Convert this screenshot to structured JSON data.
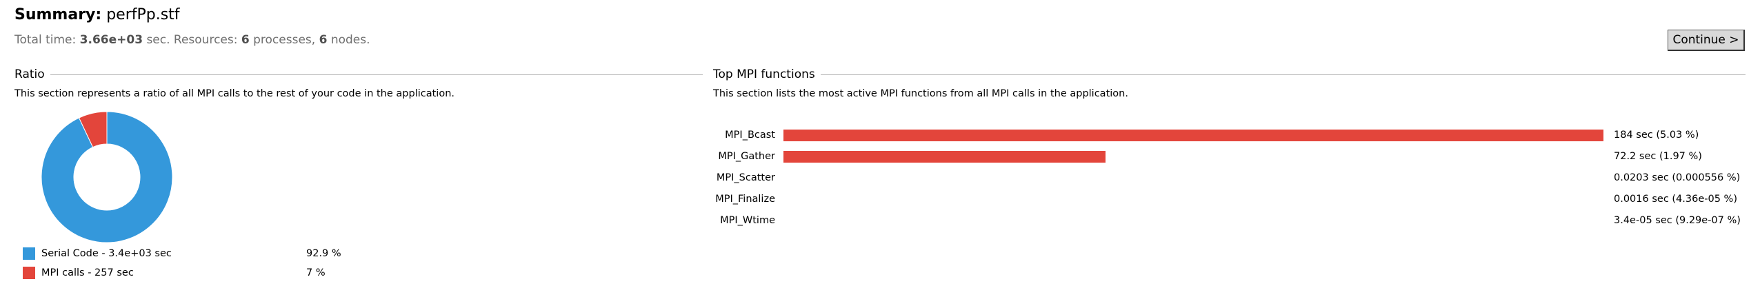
{
  "summary": {
    "title_label": "Summary:",
    "file_name": "perfPp.stf",
    "total_time_prefix": "Total time:",
    "total_time_value": "3.66e+03",
    "total_time_unit": "sec.",
    "resources_prefix": "Resources:",
    "processes_count": "6",
    "processes_label": "processes,",
    "nodes_count": "6",
    "nodes_label": "nodes."
  },
  "continue_button": {
    "label": "Continue >"
  },
  "ratio": {
    "heading": "Ratio",
    "description": "This section represents a ratio of all MPI calls to the rest of your code in the application.",
    "legend": [
      {
        "label": "Serial Code - 3.4e+03 sec",
        "percent_text": "92.9 %",
        "fraction": 0.929,
        "color": "#3498db"
      },
      {
        "label": "MPI calls - 257 sec",
        "percent_text": "7 %",
        "fraction": 0.07,
        "color": "#e3453b"
      }
    ]
  },
  "top_mpi": {
    "heading": "Top MPI functions",
    "description": "This section lists the most active MPI functions from all MPI calls in the application.",
    "bar_color": "#e3453b",
    "functions": [
      {
        "name": "MPI_Bcast",
        "seconds": 184,
        "value_text": "184 sec (5.03 %)"
      },
      {
        "name": "MPI_Gather",
        "seconds": 72.2,
        "value_text": "72.2 sec (1.97 %)"
      },
      {
        "name": "MPI_Scatter",
        "seconds": 0.0203,
        "value_text": "0.0203 sec (0.000556 %)"
      },
      {
        "name": "MPI_Finalize",
        "seconds": 0.0016,
        "value_text": "0.0016 sec (4.36e-05 %)"
      },
      {
        "name": "MPI_Wtime",
        "seconds": 3.4e-05,
        "value_text": "3.4e-05 sec (9.29e-07 %)"
      }
    ]
  }
}
